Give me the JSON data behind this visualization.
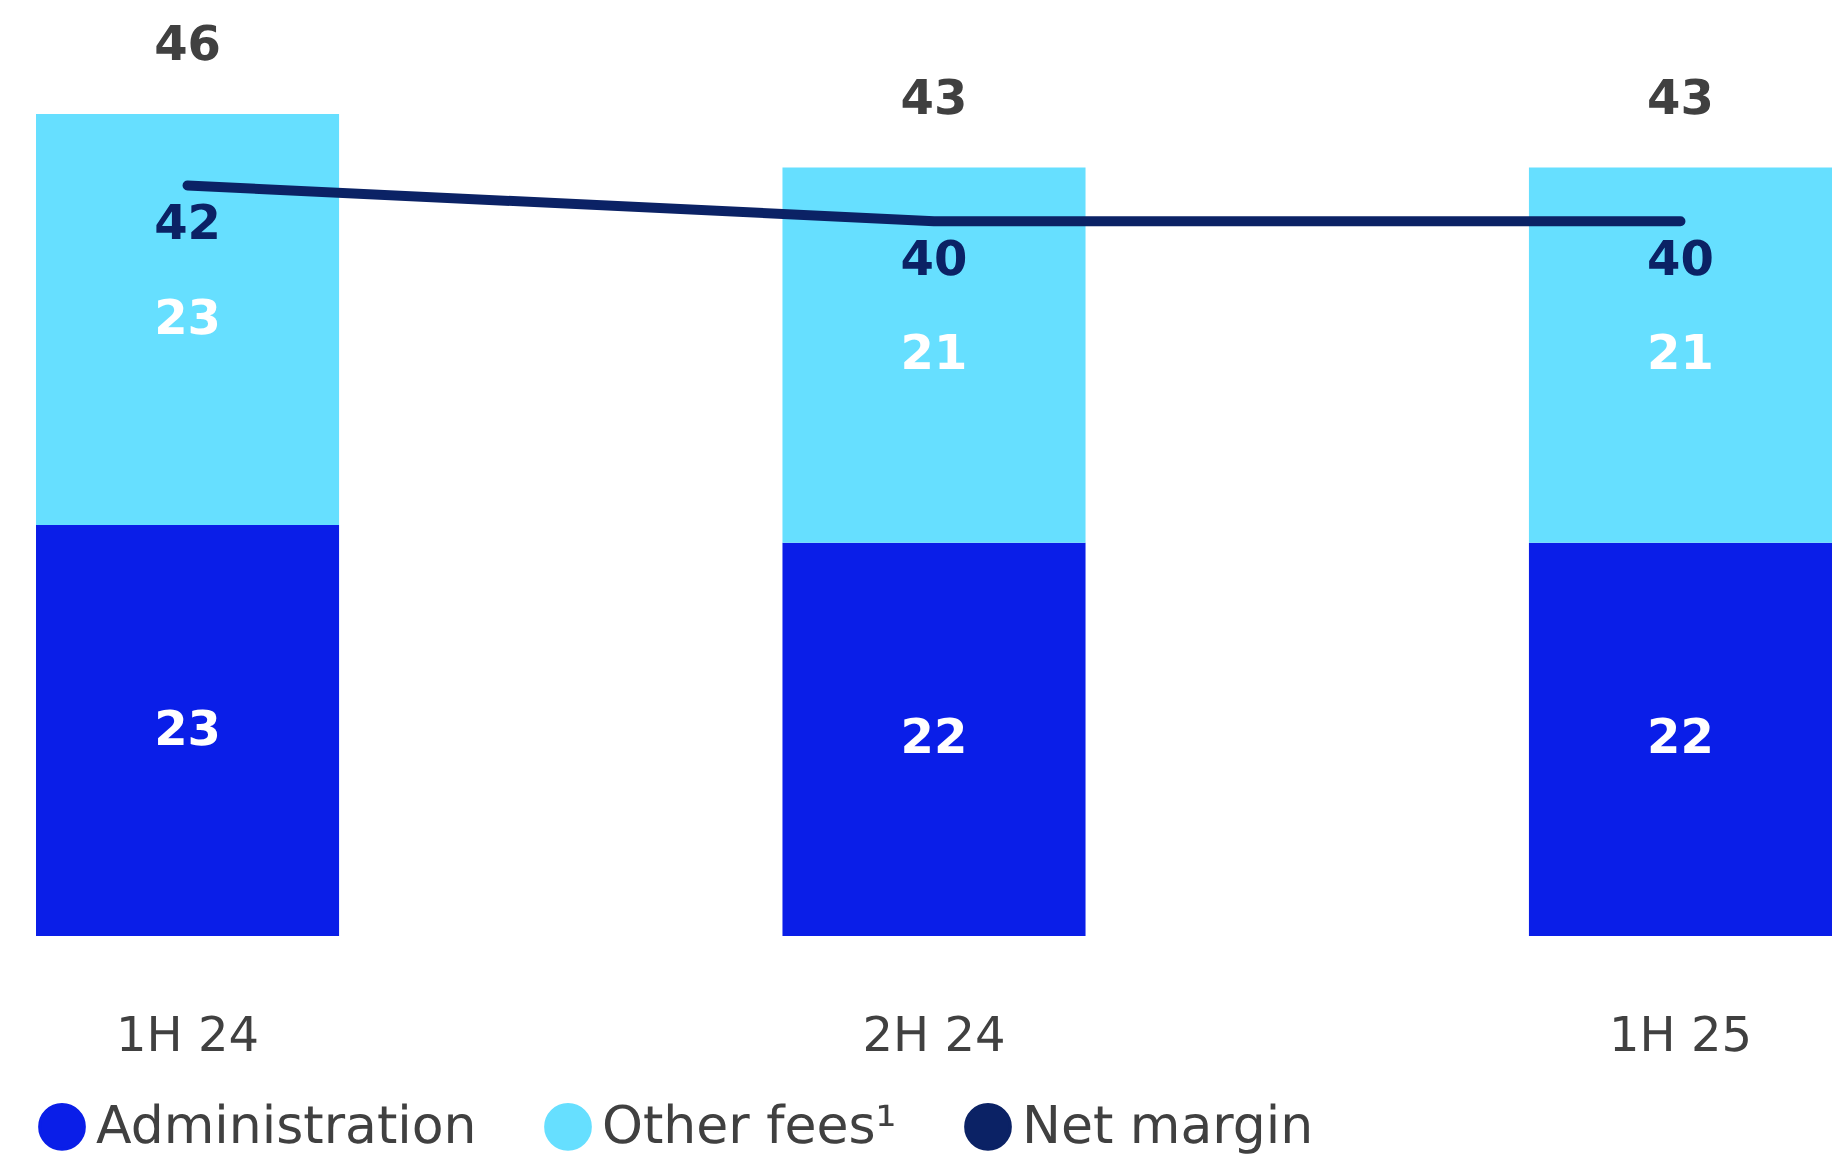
{
  "chart_data": {
    "type": "bar",
    "stacked": true,
    "categories": [
      "1H 24",
      "2H 24",
      "1H 25"
    ],
    "series": [
      {
        "name": "Administration",
        "color": "#0a1ee8",
        "values": [
          23,
          22,
          22
        ]
      },
      {
        "name": "Other fees¹",
        "color": "#66dfff",
        "values": [
          23,
          21,
          21
        ]
      },
      {
        "name": "Net margin",
        "type": "line",
        "color": "#0b2265",
        "values": [
          42,
          40,
          40
        ]
      }
    ],
    "totals": [
      "46",
      "43",
      "43"
    ],
    "data_labels": true,
    "legend": "bottom"
  }
}
